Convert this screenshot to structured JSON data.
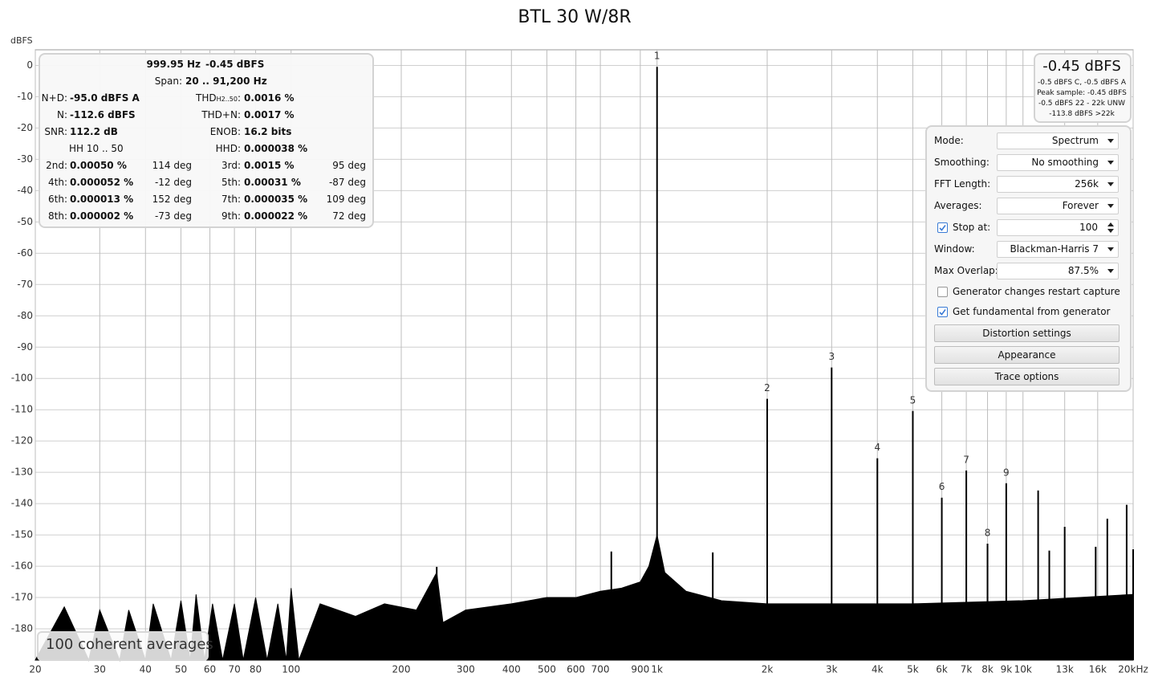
{
  "chart_data": {
    "type": "spectrum",
    "title": "BTL 30 W/8R",
    "y_label": "dBFS",
    "log_x": true,
    "grid": true,
    "xlim": [
      20,
      20000
    ],
    "ylim": [
      -190,
      5
    ],
    "xticks": [
      20,
      30,
      40,
      50,
      60,
      70,
      80,
      100,
      200,
      300,
      400,
      500,
      600,
      700,
      900,
      {
        "value": 1000,
        "label": "1k"
      },
      {
        "value": 2000,
        "label": "2k"
      },
      {
        "value": 3000,
        "label": "3k"
      },
      {
        "value": 4000,
        "label": "4k"
      },
      {
        "value": 5000,
        "label": "5k"
      },
      {
        "value": 6000,
        "label": "6k"
      },
      {
        "value": 7000,
        "label": "7k"
      },
      {
        "value": 8000,
        "label": "8k"
      },
      {
        "value": 9000,
        "label": "9k"
      },
      {
        "value": 10000,
        "label": "10k"
      },
      {
        "value": 13000,
        "label": "13k"
      },
      {
        "value": 16000,
        "label": "16k"
      },
      {
        "value": 20000,
        "label": "20kHz"
      }
    ],
    "yticks": [
      0,
      -10,
      -20,
      -30,
      -40,
      -50,
      -60,
      -70,
      -80,
      -90,
      -100,
      -110,
      -120,
      -130,
      -140,
      -150,
      -160,
      -170,
      -180
    ],
    "noise": {
      "color": "#000000",
      "x": [
        20,
        24,
        28,
        30,
        34,
        36,
        40,
        42,
        47,
        50,
        53,
        55,
        58,
        61,
        65,
        70,
        74,
        80,
        86,
        92,
        97,
        100,
        105,
        120,
        150,
        180,
        220,
        250,
        260,
        300,
        400,
        500,
        600,
        700,
        800,
        900,
        950,
        1000,
        1050,
        1200,
        1500,
        2000,
        3000,
        5000,
        10000,
        20000
      ],
      "values": [
        -190,
        -173,
        -190,
        -174,
        -190,
        -174,
        -190,
        -172,
        -190,
        -171,
        -190,
        -169,
        -190,
        -172,
        -190,
        -172,
        -190,
        -170,
        -190,
        -172,
        -190,
        -167,
        -190,
        -172,
        -176,
        -172,
        -174,
        -162,
        -178,
        -174,
        -172,
        -170,
        -170,
        -168,
        -167,
        -165,
        -160,
        -150,
        -162,
        -168,
        -171,
        -172,
        -172,
        -172,
        -171,
        -169
      ]
    },
    "harmonics": {
      "color": "#000000",
      "orders": [
        1,
        2,
        3,
        4,
        5,
        6,
        7,
        8,
        9
      ],
      "x": [
        1000,
        2000,
        3000,
        4000,
        5000,
        6000,
        7000,
        8000,
        9000
      ],
      "values": [
        -0.45,
        -106.5,
        -96.5,
        -125.5,
        -110.4,
        -138.1,
        -129.4,
        -152.8,
        -133.5
      ]
    },
    "spurs": {
      "color": "#000000",
      "x": [
        250,
        750,
        1420,
        11000,
        11800,
        13000,
        15800,
        17000,
        19200,
        20000
      ],
      "values": [
        -160.2,
        -155.3,
        -155.6,
        -135.8,
        -155,
        -147.4,
        -153.8,
        -144.8,
        -140.4,
        -154.6
      ]
    }
  },
  "status": "100 coherent averages",
  "readout": {
    "rows": [
      {
        "freq": "999.95 Hz",
        "level": "-0.45 dBFS"
      },
      {
        "span_label": "Span:",
        "span": "20 .. 91,200 Hz"
      },
      {
        "l1": "N+D:",
        "v1": "-95.0 dBFS A",
        "l2": "THD",
        "l2_sub": "H2..50",
        "l2_end": ":",
        "v2": "0.0016 %"
      },
      {
        "l1": "N:",
        "v1": "-112.6 dBFS",
        "l2": "THD+N:",
        "v2": "0.0017 %"
      },
      {
        "l1": "SNR:",
        "v1": "112.2 dB",
        "l2": "ENOB:",
        "v2": "16.2 bits"
      },
      {
        "note": "HH 10 .. 50",
        "l2": "HHD:",
        "v2": "0.000038 %"
      },
      {
        "l1": "2nd:",
        "v1": "0.00050 %",
        "p1": "114 deg",
        "l2": "3rd:",
        "v2": "0.0015 %",
        "p2": "95 deg"
      },
      {
        "l1": "4th:",
        "v1": "0.000052 %",
        "p1": "-12 deg",
        "l2": "5th:",
        "v2": "0.00031 %",
        "p2": "-87 deg"
      },
      {
        "l1": "6th:",
        "v1": "0.000013 %",
        "p1": "152 deg",
        "l2": "7th:",
        "v2": "0.000035 %",
        "p2": "109 deg"
      },
      {
        "l1": "8th:",
        "v1": "0.000002 %",
        "p1": "-73 deg",
        "l2": "9th:",
        "v2": "0.000022 %",
        "p2": "72 deg"
      }
    ]
  },
  "meter": {
    "level": "-0.45 dBFS",
    "lines": [
      "-0.5 dBFS C, -0.5 dBFS A",
      "Peak sample: -0.45 dBFS",
      "-0.5 dBFS 22 - 22k UNW",
      "-113.8 dBFS >22k"
    ]
  },
  "controls": {
    "rows": [
      {
        "label": "Mode:",
        "value": "Spectrum"
      },
      {
        "label": "Smoothing:",
        "value": "No smoothing"
      },
      {
        "label": "FFT Length:",
        "value": "256k"
      },
      {
        "label": "Averages:",
        "value": "Forever"
      },
      {
        "label": "Stop at:",
        "value": "100",
        "checked": true
      },
      {
        "label": "Window:",
        "value": "Blackman-Harris 7"
      },
      {
        "label": "Max Overlap:",
        "value": "87.5%"
      }
    ],
    "checkboxes": [
      {
        "label": "Generator changes restart capture",
        "checked": false
      },
      {
        "label": "Get fundamental from generator",
        "checked": true
      }
    ],
    "buttons": [
      "Distortion settings",
      "Appearance",
      "Trace options"
    ]
  }
}
